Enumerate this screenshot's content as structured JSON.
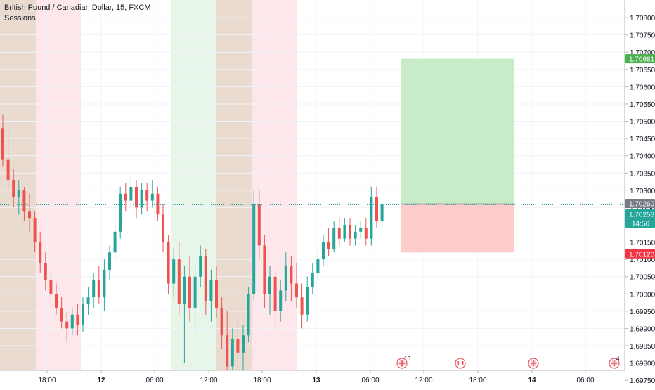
{
  "legend": {
    "symbol": "British Pound / Canadian Dollar, 15, FXCM",
    "indicator": "Sessions"
  },
  "colors": {
    "up": "#26a69a",
    "down": "#ef5350",
    "session_green": "#e8f5e9",
    "session_red": "#fde7ea",
    "session_brown": "#eadbd0",
    "profit_zone": "#c8ebc8",
    "loss_zone": "#ffcccc",
    "price_badge_green": "#4caf50",
    "price_badge_teal": "#26a69a",
    "price_badge_red": "#f23645",
    "price_badge_gray": "#787b86"
  },
  "chart_data": {
    "type": "candlestick",
    "symbol": "GBP/CAD",
    "timeframe": "15",
    "y_axis": {
      "ylim": [
        1.6975,
        1.7085
      ],
      "ticks": [
        "1.70800",
        "1.70750",
        "1.70700",
        "1.70650",
        "1.70600",
        "1.70550",
        "1.70500",
        "1.70450",
        "1.70400",
        "1.70350",
        "1.70300",
        "1.70250",
        "1.70150",
        "1.70100",
        "1.70050",
        "1.70000",
        "1.69950",
        "1.69900",
        "1.69850",
        "1.69800",
        "1.69750"
      ],
      "tick_values": [
        1.708,
        1.7075,
        1.707,
        1.7065,
        1.706,
        1.7055,
        1.705,
        1.7045,
        1.704,
        1.7035,
        1.703,
        1.7025,
        1.7015,
        1.701,
        1.7005,
        1.7,
        1.6995,
        1.699,
        1.6985,
        1.698,
        1.6975
      ]
    },
    "x_axis": {
      "tick_labels": [
        "18:00",
        "12",
        "06:00",
        "12:00",
        "18:00",
        "13",
        "06:00",
        "12:00",
        "18:00",
        "14",
        "06:00"
      ],
      "tick_bold": [
        false,
        true,
        false,
        false,
        false,
        true,
        false,
        false,
        false,
        true,
        false
      ]
    },
    "price_labels": {
      "take_profit": "1.70681",
      "entry": "1.70260",
      "current": "1.70258",
      "countdown": "14:56",
      "stop_loss": "1.70120",
      "take_profit_value": 1.70681,
      "entry_value": 1.7026,
      "current_value": 1.70258,
      "stop_loss_value": 1.7012
    },
    "events": [
      {
        "icon": "uk-flag-icon",
        "count": "16"
      },
      {
        "icon": "canada-flag-icon",
        "count": ""
      },
      {
        "icon": "uk-flag-icon",
        "count": ""
      },
      {
        "icon": "uk-flag-icon",
        "count": "4"
      }
    ],
    "candles": [
      [
        1.7048,
        1.7052,
        1.7037,
        1.7039
      ],
      [
        1.7039,
        1.7047,
        1.703,
        1.7033
      ],
      [
        1.7033,
        1.7036,
        1.7025,
        1.7028
      ],
      [
        1.7028,
        1.7033,
        1.7023,
        1.703
      ],
      [
        1.703,
        1.7031,
        1.7021,
        1.7024
      ],
      [
        1.7024,
        1.7029,
        1.7018,
        1.7022
      ],
      [
        1.7022,
        1.7024,
        1.7012,
        1.7015
      ],
      [
        1.7015,
        1.7018,
        1.7006,
        1.7009
      ],
      [
        1.7009,
        1.7012,
        1.7001,
        1.7004
      ],
      [
        1.7004,
        1.7007,
        1.6998,
        1.7
      ],
      [
        1.7,
        1.7003,
        1.6994,
        1.6996
      ],
      [
        1.6996,
        1.6999,
        1.699,
        1.6992
      ],
      [
        1.6992,
        1.6995,
        1.6986,
        1.699
      ],
      [
        1.699,
        1.6996,
        1.6988,
        1.6994
      ],
      [
        1.6994,
        1.6997,
        1.6988,
        1.6991
      ],
      [
        1.6991,
        1.6999,
        1.6989,
        1.6997
      ],
      [
        1.6997,
        1.7002,
        1.6994,
        1.6999
      ],
      [
        1.6999,
        1.7006,
        1.6996,
        1.7004
      ],
      [
        1.7004,
        1.7008,
        1.6997,
        1.6999
      ],
      [
        1.6999,
        1.701,
        1.6995,
        1.7007
      ],
      [
        1.7007,
        1.7014,
        1.7004,
        1.7012
      ],
      [
        1.7012,
        1.702,
        1.701,
        1.7018
      ],
      [
        1.7018,
        1.7031,
        1.7016,
        1.7029
      ],
      [
        1.7029,
        1.7032,
        1.7024,
        1.7027
      ],
      [
        1.7027,
        1.7034,
        1.7025,
        1.7031
      ],
      [
        1.7031,
        1.7033,
        1.7022,
        1.7025
      ],
      [
        1.7025,
        1.7032,
        1.7023,
        1.703
      ],
      [
        1.703,
        1.7032,
        1.7024,
        1.7027
      ],
      [
        1.7027,
        1.7033,
        1.7025,
        1.7029
      ],
      [
        1.7029,
        1.7031,
        1.7021,
        1.7023
      ],
      [
        1.7023,
        1.7026,
        1.7012,
        1.7015
      ],
      [
        1.7015,
        1.7017,
        1.7,
        1.7003
      ],
      [
        1.7003,
        1.7013,
        1.6999,
        1.701
      ],
      [
        1.701,
        1.7015,
        1.6994,
        1.6997
      ],
      [
        1.6997,
        1.7008,
        1.698,
        1.7005
      ],
      [
        1.7005,
        1.7011,
        1.6992,
        1.6996
      ],
      [
        1.6996,
        1.7008,
        1.6989,
        1.7005
      ],
      [
        1.7005,
        1.7014,
        1.7002,
        1.7011
      ],
      [
        1.7011,
        1.7013,
        1.6994,
        1.6998
      ],
      [
        1.6998,
        1.7007,
        1.6992,
        1.7004
      ],
      [
        1.7004,
        1.7008,
        1.6993,
        1.6996
      ],
      [
        1.6996,
        1.6999,
        1.6984,
        1.6988
      ],
      [
        1.6988,
        1.6995,
        1.6976,
        1.6979
      ],
      [
        1.6979,
        1.699,
        1.6977,
        1.6987
      ],
      [
        1.6987,
        1.6993,
        1.6978,
        1.6983
      ],
      [
        1.6983,
        1.6991,
        1.6978,
        1.6988
      ],
      [
        1.6988,
        1.7002,
        1.6986,
        1.7
      ],
      [
        1.7,
        1.703,
        1.6998,
        1.7026
      ],
      [
        1.7026,
        1.703,
        1.701,
        1.7014
      ],
      [
        1.7014,
        1.7017,
        1.6996,
        1.7
      ],
      [
        1.7,
        1.7008,
        1.6994,
        1.7005
      ],
      [
        1.7005,
        1.7007,
        1.699,
        1.6995
      ],
      [
        1.6995,
        1.7004,
        1.6992,
        1.7001
      ],
      [
        1.7001,
        1.7012,
        1.6998,
        1.7008
      ],
      [
        1.7008,
        1.7011,
        1.6998,
        1.7003
      ],
      [
        1.7003,
        1.7009,
        1.6996,
        1.6999
      ],
      [
        1.6999,
        1.7003,
        1.699,
        1.6994
      ],
      [
        1.6994,
        1.7005,
        1.6992,
        1.7002
      ],
      [
        1.7002,
        1.7009,
        1.7,
        1.7006
      ],
      [
        1.7006,
        1.7012,
        1.7004,
        1.701
      ],
      [
        1.701,
        1.7017,
        1.7008,
        1.7015
      ],
      [
        1.7015,
        1.7019,
        1.7011,
        1.7013
      ],
      [
        1.7013,
        1.7021,
        1.7012,
        1.7019
      ],
      [
        1.7019,
        1.7022,
        1.7014,
        1.7016
      ],
      [
        1.7016,
        1.7022,
        1.7015,
        1.702
      ],
      [
        1.702,
        1.7022,
        1.7014,
        1.7016
      ],
      [
        1.7016,
        1.702,
        1.7014,
        1.7018
      ],
      [
        1.7018,
        1.7021,
        1.7016,
        1.7019
      ],
      [
        1.7019,
        1.7022,
        1.7014,
        1.7016
      ],
      [
        1.7016,
        1.7031,
        1.7014,
        1.7028
      ],
      [
        1.7028,
        1.7031,
        1.7019,
        1.7021
      ],
      [
        1.7021,
        1.7026,
        1.7019,
        1.7026
      ]
    ]
  }
}
